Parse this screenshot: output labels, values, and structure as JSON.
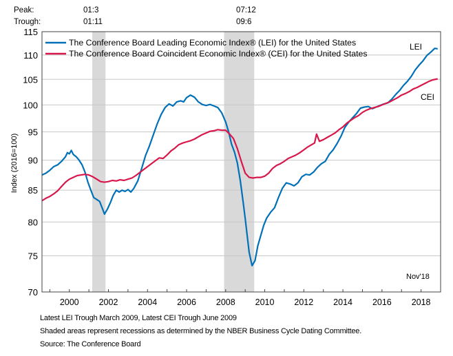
{
  "chart_data": {
    "type": "line",
    "title": "",
    "ylabel": "Index (2016=100)",
    "xlabel": "",
    "y_scale": "log",
    "ylim": [
      70,
      115
    ],
    "xlim": [
      1998.6,
      2019.0
    ],
    "yticks": [
      70,
      75,
      80,
      85,
      90,
      95,
      100,
      105,
      110,
      115
    ],
    "xticks": [
      2000,
      2002,
      2004,
      2006,
      2008,
      2010,
      2012,
      2014,
      2016,
      2018
    ],
    "grid": true,
    "legend_position": "top-left",
    "peak_trough": {
      "peak_label": "Peak:",
      "trough_label": "Trough:",
      "recessions": [
        {
          "peak": "01:3",
          "trough": "01:11",
          "start": 2001.17,
          "end": 2001.85
        },
        {
          "peak": "07:12",
          "trough": "09:6",
          "start": 2007.92,
          "end": 2009.46
        }
      ]
    },
    "annotation": "Nov'18",
    "series": [
      {
        "name": "The Conference Board Leading Economic Index® (LEI) for the United States",
        "end_label": "LEI",
        "color": "#0070b8",
        "x": [
          1998.6,
          1998.8,
          1999.0,
          1999.2,
          1999.4,
          1999.6,
          1999.8,
          1999.9,
          2000.0,
          2000.1,
          2000.2,
          2000.35,
          2000.5,
          2000.65,
          2000.8,
          2000.95,
          2001.1,
          2001.25,
          2001.4,
          2001.55,
          2001.7,
          2001.8,
          2001.95,
          2002.1,
          2002.25,
          2002.4,
          2002.55,
          2002.7,
          2002.85,
          2003.0,
          2003.15,
          2003.3,
          2003.5,
          2003.7,
          2003.9,
          2004.1,
          2004.3,
          2004.5,
          2004.7,
          2004.9,
          2005.1,
          2005.3,
          2005.5,
          2005.7,
          2005.85,
          2006.0,
          2006.2,
          2006.4,
          2006.6,
          2006.8,
          2007.0,
          2007.2,
          2007.4,
          2007.6,
          2007.8,
          2008.0,
          2008.15,
          2008.3,
          2008.45,
          2008.6,
          2008.75,
          2008.9,
          2009.0,
          2009.1,
          2009.2,
          2009.35,
          2009.5,
          2009.65,
          2009.8,
          2009.95,
          2010.1,
          2010.3,
          2010.5,
          2010.7,
          2010.9,
          2011.1,
          2011.3,
          2011.5,
          2011.7,
          2011.9,
          2012.1,
          2012.3,
          2012.5,
          2012.7,
          2012.9,
          2013.1,
          2013.3,
          2013.5,
          2013.7,
          2013.9,
          2014.1,
          2014.3,
          2014.5,
          2014.7,
          2014.9,
          2015.1,
          2015.3,
          2015.5,
          2015.7,
          2015.9,
          2016.1,
          2016.3,
          2016.5,
          2016.7,
          2016.9,
          2017.1,
          2017.3,
          2017.5,
          2017.7,
          2017.9,
          2018.1,
          2018.3,
          2018.5,
          2018.7,
          2018.85
        ],
        "values": [
          87.5,
          87.8,
          88.3,
          88.9,
          89.2,
          89.8,
          90.6,
          91.3,
          91.1,
          91.7,
          91.0,
          90.6,
          90.0,
          89.2,
          88.0,
          86.3,
          85.0,
          83.8,
          83.5,
          83.2,
          82.0,
          81.2,
          82.0,
          83.0,
          84.2,
          85.0,
          84.7,
          85.0,
          84.8,
          85.1,
          84.7,
          85.3,
          86.5,
          88.6,
          90.8,
          92.5,
          94.5,
          96.5,
          98.2,
          99.5,
          100.2,
          99.8,
          100.6,
          100.8,
          100.6,
          101.4,
          101.9,
          101.5,
          100.6,
          100.1,
          99.9,
          100.1,
          99.8,
          99.5,
          98.5,
          96.8,
          95.0,
          92.8,
          91.4,
          89.5,
          86.5,
          83.0,
          80.5,
          78.0,
          75.5,
          73.6,
          74.3,
          76.5,
          78.0,
          79.5,
          80.6,
          81.5,
          82.2,
          83.8,
          85.3,
          86.2,
          86.0,
          85.7,
          86.2,
          87.2,
          87.6,
          87.5,
          88.0,
          88.8,
          89.4,
          89.8,
          91.0,
          91.8,
          92.9,
          94.2,
          95.8,
          96.8,
          97.6,
          98.4,
          99.4,
          99.6,
          99.7,
          99.3,
          99.6,
          99.9,
          100.2,
          100.4,
          101.1,
          102.0,
          102.8,
          103.8,
          104.6,
          105.6,
          106.9,
          107.9,
          108.8,
          109.9,
          110.6,
          111.4,
          111.3
        ]
      },
      {
        "name": "The Conference Board Coincident Economic Index® (CEI) for the United States",
        "end_label": "CEI",
        "color": "#d8174a",
        "x": [
          1998.6,
          1998.8,
          1999.0,
          1999.2,
          1999.4,
          1999.6,
          1999.8,
          2000.0,
          2000.2,
          2000.4,
          2000.6,
          2000.8,
          2001.0,
          2001.2,
          2001.4,
          2001.6,
          2001.8,
          2002.0,
          2002.2,
          2002.4,
          2002.6,
          2002.8,
          2003.0,
          2003.2,
          2003.4,
          2003.6,
          2003.8,
          2004.0,
          2004.2,
          2004.4,
          2004.6,
          2004.8,
          2005.0,
          2005.2,
          2005.4,
          2005.6,
          2005.8,
          2006.0,
          2006.2,
          2006.4,
          2006.6,
          2006.8,
          2007.0,
          2007.2,
          2007.4,
          2007.6,
          2007.8,
          2008.0,
          2008.2,
          2008.4,
          2008.6,
          2008.8,
          2009.0,
          2009.2,
          2009.4,
          2009.6,
          2009.8,
          2010.0,
          2010.2,
          2010.4,
          2010.6,
          2010.8,
          2011.0,
          2011.2,
          2011.4,
          2011.6,
          2011.8,
          2012.0,
          2012.2,
          2012.4,
          2012.55,
          2012.65,
          2012.8,
          2013.0,
          2013.2,
          2013.4,
          2013.6,
          2013.8,
          2014.0,
          2014.2,
          2014.4,
          2014.6,
          2014.8,
          2015.0,
          2015.2,
          2015.4,
          2015.6,
          2015.8,
          2016.0,
          2016.2,
          2016.4,
          2016.6,
          2016.8,
          2017.0,
          2017.2,
          2017.4,
          2017.6,
          2017.8,
          2018.0,
          2018.2,
          2018.4,
          2018.6,
          2018.85
        ],
        "values": [
          83.3,
          83.7,
          84.0,
          84.4,
          84.9,
          85.6,
          86.3,
          86.8,
          87.1,
          87.4,
          87.5,
          87.6,
          87.5,
          87.2,
          86.8,
          86.4,
          86.3,
          86.4,
          86.6,
          86.5,
          86.7,
          86.6,
          86.8,
          87.0,
          87.4,
          87.9,
          88.4,
          88.9,
          89.4,
          89.9,
          90.4,
          90.3,
          90.9,
          91.6,
          92.1,
          92.7,
          93.0,
          93.2,
          93.4,
          93.7,
          94.1,
          94.5,
          94.8,
          95.1,
          95.2,
          95.4,
          95.3,
          95.3,
          94.6,
          93.8,
          92.0,
          89.8,
          87.8,
          87.1,
          87.0,
          87.1,
          87.1,
          87.3,
          87.8,
          88.6,
          89.1,
          89.4,
          89.8,
          90.3,
          90.6,
          90.9,
          91.3,
          91.8,
          92.3,
          92.7,
          93.0,
          94.6,
          93.3,
          93.6,
          94.0,
          94.4,
          94.8,
          95.4,
          95.9,
          96.6,
          97.1,
          97.6,
          98.0,
          98.6,
          99.0,
          99.3,
          99.5,
          99.7,
          100.0,
          100.3,
          100.6,
          101.0,
          101.4,
          101.9,
          102.2,
          102.6,
          103.1,
          103.4,
          103.8,
          104.2,
          104.6,
          104.9,
          105.1
        ]
      }
    ],
    "footnotes": [
      "Latest LEI Trough March 2009, Latest CEI Trough June 2009",
      "Shaded areas represent recessions as determined by the NBER Business Cycle Dating Committee.",
      "Source: The Conference Board"
    ]
  }
}
